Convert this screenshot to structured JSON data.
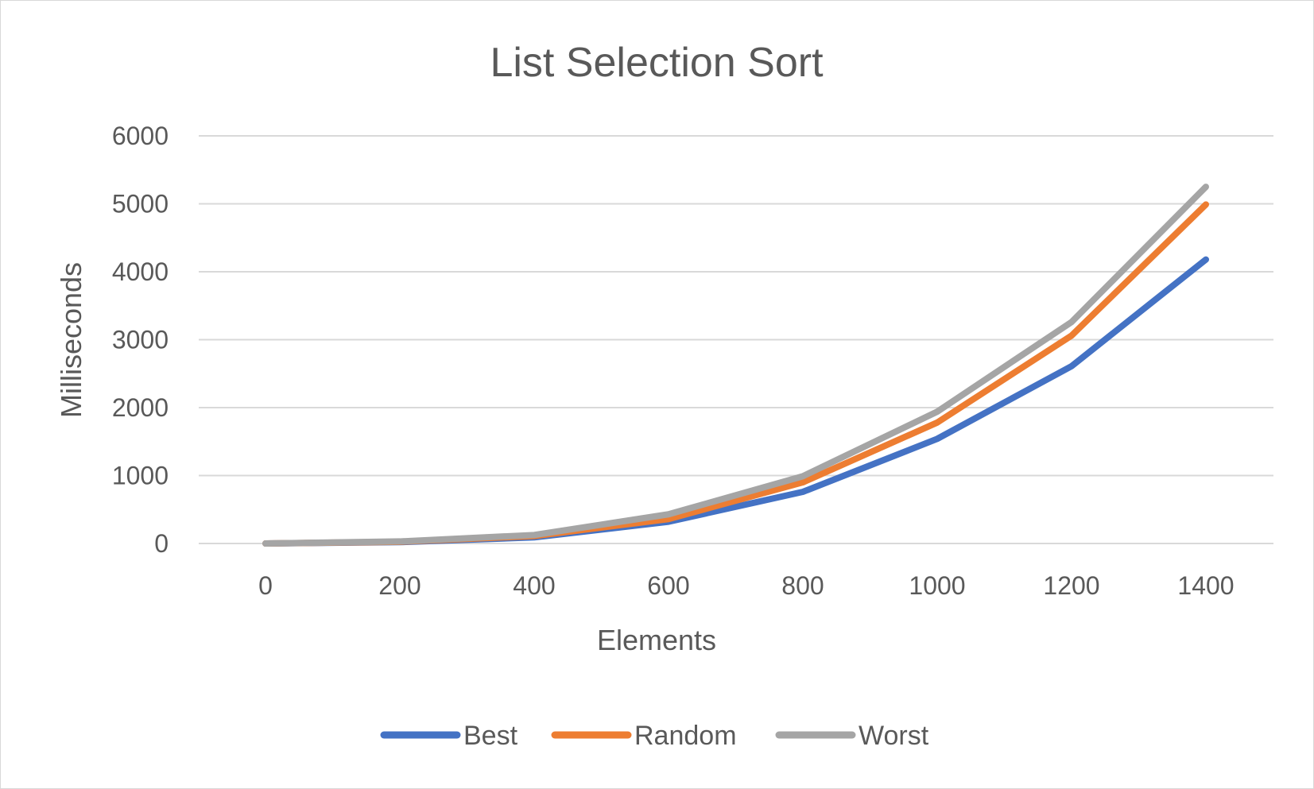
{
  "chart_data": {
    "type": "line",
    "title": "List Selection Sort",
    "xlabel": "Elements",
    "ylabel": "Milliseconds",
    "x": [
      0,
      200,
      400,
      600,
      800,
      1000,
      1200,
      1400
    ],
    "xlim": [
      0,
      1400
    ],
    "ylim": [
      0,
      6000
    ],
    "xticks": [
      "0",
      "200",
      "400",
      "600",
      "800",
      "1000",
      "1200",
      "1400"
    ],
    "yticks": [
      "0",
      "1000",
      "2000",
      "3000",
      "4000",
      "5000",
      "6000"
    ],
    "grid": true,
    "legend_position": "bottom",
    "series": [
      {
        "name": "Best",
        "color": "#4472c4",
        "values": [
          0,
          20,
          90,
          320,
          760,
          1540,
          2610,
          4180
        ]
      },
      {
        "name": "Random",
        "color": "#ed7d31",
        "values": [
          0,
          25,
          110,
          360,
          900,
          1780,
          3060,
          4990
        ]
      },
      {
        "name": "Worst",
        "color": "#a5a5a5",
        "values": [
          0,
          30,
          125,
          430,
          990,
          1940,
          3260,
          5250
        ]
      }
    ]
  }
}
